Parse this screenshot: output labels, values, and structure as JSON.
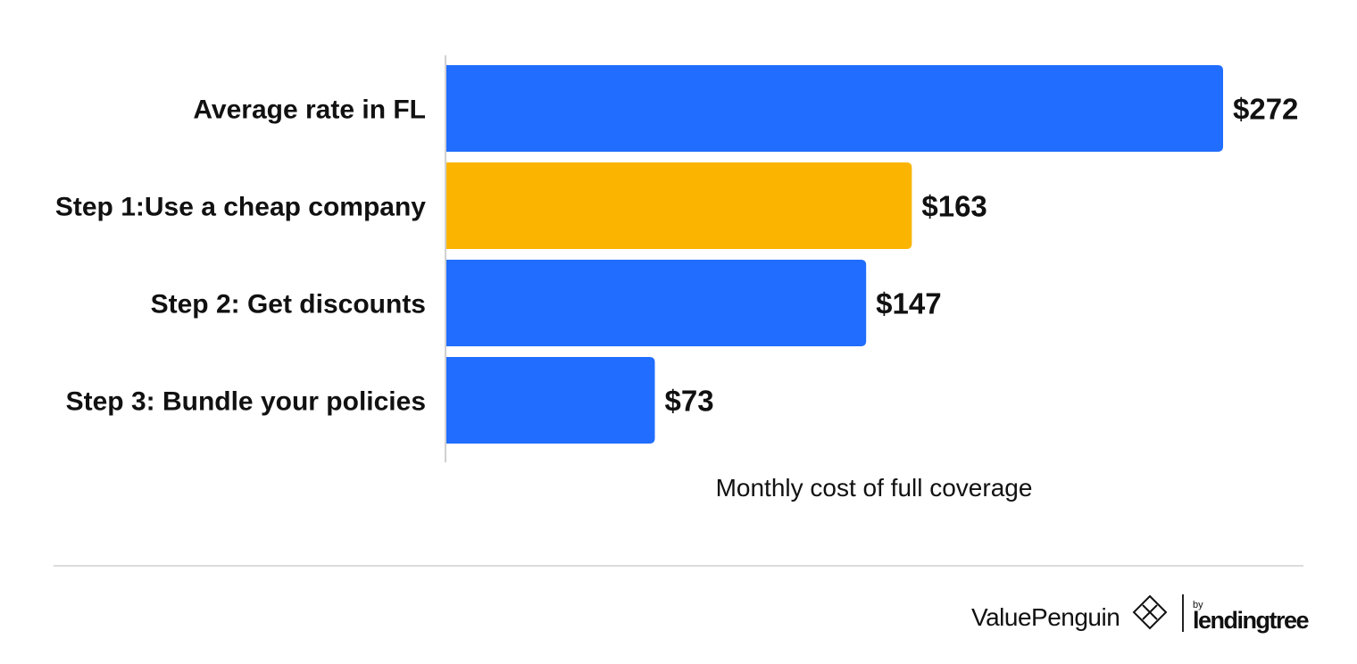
{
  "chart_data": {
    "type": "bar",
    "orientation": "horizontal",
    "categories": [
      "Average rate in FL",
      "Step 1:Use a cheap company",
      "Step 2: Get discounts",
      "Step 3: Bundle your policies"
    ],
    "values": [
      272,
      163,
      147,
      73
    ],
    "value_labels": [
      "$272",
      "$163",
      "$147",
      "$73"
    ],
    "colors": [
      "#206DFF",
      "#FBB500",
      "#206DFF",
      "#206DFF"
    ],
    "xlabel": "Monthly cost of full coverage",
    "xlim": [
      0,
      272
    ],
    "grid": false,
    "legend": "none"
  },
  "footer": {
    "brand": "ValuePenguin",
    "by": "by",
    "partner": "lendingtree",
    "brand_icon": "valuepenguin-logo-icon"
  }
}
